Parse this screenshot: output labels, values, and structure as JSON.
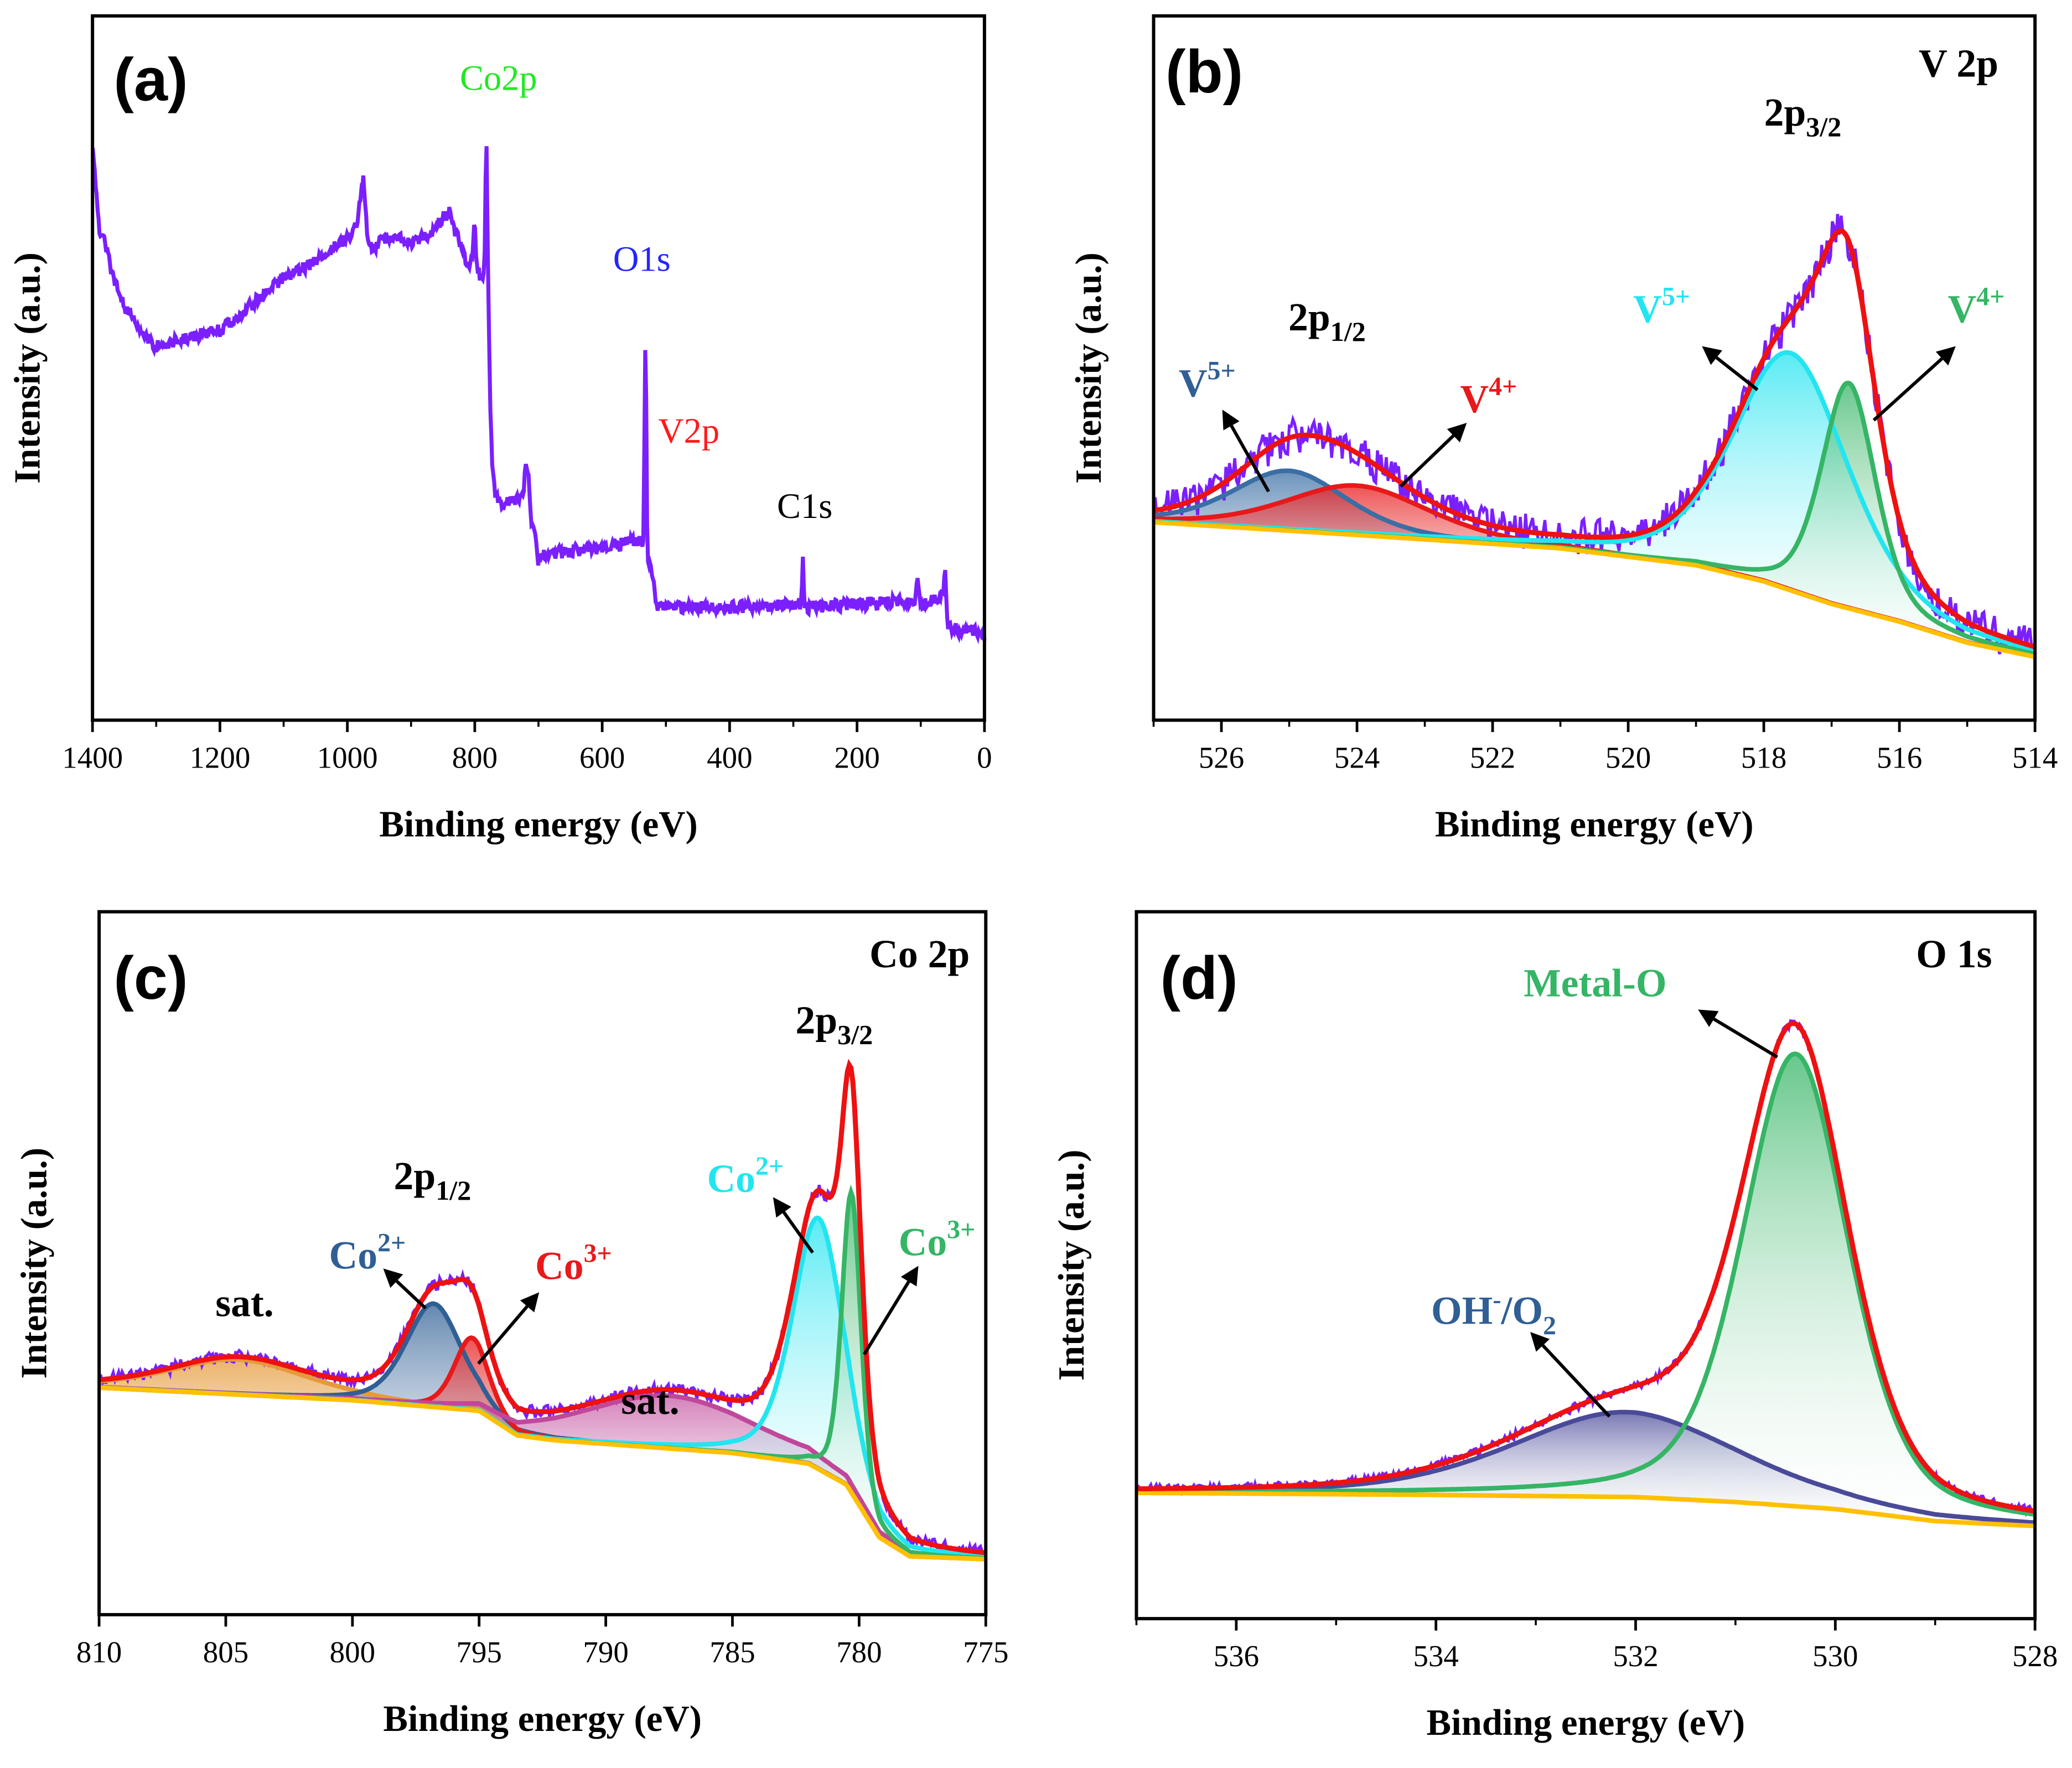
{
  "chart_data": [
    {
      "panel_label": "(a)",
      "type": "line",
      "xlabel": "Binding energy (eV)",
      "ylabel": "Intensity (a.u.)",
      "xlim": [
        1400,
        0
      ],
      "ylim": [
        0,
        100
      ],
      "xticks": [
        1400,
        1200,
        1000,
        800,
        600,
        400,
        200,
        0
      ],
      "tick_labels": [
        "1400",
        "1200",
        "1000",
        "800",
        "600",
        "400",
        "200",
        "0"
      ],
      "grid": false,
      "series_color": "#7b1fff",
      "series": [
        [
          1400,
          81.6
        ],
        [
          1390,
          70
        ],
        [
          1380,
          67.5
        ],
        [
          1365,
          62
        ],
        [
          1350,
          59
        ],
        [
          1320,
          55
        ],
        [
          1300,
          53
        ],
        [
          1280,
          53.5
        ],
        [
          1250,
          54.4
        ],
        [
          1220,
          55
        ],
        [
          1200,
          55.3
        ],
        [
          1150,
          59
        ],
        [
          1100,
          62.9
        ],
        [
          1050,
          65
        ],
        [
          1000,
          68.5
        ],
        [
          985,
          70
        ],
        [
          975,
          77
        ],
        [
          968,
          68
        ],
        [
          960,
          67
        ],
        [
          930,
          69
        ],
        [
          900,
          67.5
        ],
        [
          870,
          69
        ],
        [
          850,
          71.3
        ],
        [
          840,
          72
        ],
        [
          825,
          68
        ],
        [
          810,
          64.7
        ],
        [
          803,
          66
        ],
        [
          800,
          72
        ],
        [
          797,
          64
        ],
        [
          790,
          63
        ],
        [
          785,
          63
        ],
        [
          782,
          84.4
        ],
        [
          779,
          63
        ],
        [
          776,
          46
        ],
        [
          772,
          35
        ],
        [
          768,
          31.9
        ],
        [
          760,
          30.5
        ],
        [
          740,
          31
        ],
        [
          725,
          31.5
        ],
        [
          720,
          36
        ],
        [
          716,
          35.5
        ],
        [
          712,
          28
        ],
        [
          705,
          26
        ],
        [
          700,
          22.5
        ],
        [
          690,
          23.5
        ],
        [
          650,
          24
        ],
        [
          600,
          24.5
        ],
        [
          560,
          25.3
        ],
        [
          540,
          25.5
        ],
        [
          535,
          25
        ],
        [
          532,
          58.2
        ],
        [
          529,
          22
        ],
        [
          525,
          22
        ],
        [
          520,
          20.5
        ],
        [
          515,
          15.9
        ],
        [
          450,
          16
        ],
        [
          400,
          16
        ],
        [
          300,
          16.3
        ],
        [
          288,
          16.5
        ],
        [
          285,
          23
        ],
        [
          282,
          16
        ],
        [
          200,
          16.5
        ],
        [
          110,
          17
        ],
        [
          105,
          20.4
        ],
        [
          100,
          16.5
        ],
        [
          70,
          17.5
        ],
        [
          65,
          18
        ],
        [
          62,
          21.6
        ],
        [
          58,
          13
        ],
        [
          40,
          12.8
        ],
        [
          20,
          12.6
        ],
        [
          0,
          12.2
        ]
      ],
      "annotations": [
        {
          "text": "Co2p",
          "color": "#22e822"
        },
        {
          "text": "O1s",
          "color": "#2424ff"
        },
        {
          "text": "V2p",
          "color": "#ff1a1a"
        },
        {
          "text": "C1s",
          "color": "#000000"
        }
      ]
    },
    {
      "panel_label": "(b)",
      "title": "V 2p",
      "type": "line",
      "xlabel": "Binding energy (eV)",
      "ylabel": "Intensity (a.u.)",
      "xlim": [
        527,
        514
      ],
      "ylim": [
        0,
        100
      ],
      "xticks": [
        526,
        524,
        522,
        520,
        518,
        516,
        514
      ],
      "tick_labels": [
        "526",
        "524",
        "522",
        "520",
        "518",
        "516",
        "514"
      ],
      "grid": false,
      "raw_color": "#7b1fff",
      "envelope_color": "#ee1111",
      "baseline_color": "#ffc000",
      "baseline": [
        [
          527,
          28.1
        ],
        [
          524,
          26.3
        ],
        [
          521,
          24.4
        ],
        [
          519,
          22
        ],
        [
          518,
          19.7
        ],
        [
          517,
          16.5
        ],
        [
          516,
          14
        ],
        [
          515,
          11
        ],
        [
          514,
          9
        ]
      ],
      "components": [
        {
          "label": "V",
          "sup": "5+",
          "center": 525.0,
          "height": 8.5,
          "fwhm": 2.0,
          "color": "#3a6ea5"
        },
        {
          "label": "V",
          "sup": "4+",
          "center": 524.0,
          "height": 7.0,
          "fwhm": 2.5,
          "color": "#e8191a"
        },
        {
          "label": "V",
          "sup": "5+",
          "center": 517.6,
          "height": 33.7,
          "fwhm": 2.0,
          "color": "#22e5f0"
        },
        {
          "label": "V",
          "sup": "4+",
          "center": 516.75,
          "height": 32.0,
          "fwhm": 0.95,
          "color": "#35b565"
        }
      ],
      "peak_labels": [
        {
          "base": "2p",
          "sub": "1/2"
        },
        {
          "base": "2p",
          "sub": "3/2"
        }
      ]
    },
    {
      "panel_label": "(c)",
      "title": "Co 2p",
      "type": "line",
      "xlabel": "Binding energy (eV)",
      "ylabel": "Intensity (a.u.)",
      "xlim": [
        810,
        775
      ],
      "ylim": [
        0,
        100
      ],
      "xticks": [
        810,
        805,
        800,
        795,
        790,
        785,
        780,
        775
      ],
      "tick_labels": [
        "810",
        "805",
        "800",
        "795",
        "790",
        "785",
        "780",
        "775"
      ],
      "grid": false,
      "raw_color": "#7b1fff",
      "envelope_color": "#ee1111",
      "baseline_color": "#ffc000",
      "baseline": [
        [
          810,
          32.3
        ],
        [
          800,
          30.5
        ],
        [
          795,
          29
        ],
        [
          793.5,
          25.5
        ],
        [
          792,
          24.8
        ],
        [
          785,
          23
        ],
        [
          782,
          21.5
        ],
        [
          780.5,
          18.5
        ],
        [
          779.2,
          11
        ],
        [
          778,
          8.3
        ],
        [
          775,
          7.9
        ]
      ],
      "components": [
        {
          "label": "sat.",
          "center": 804.5,
          "height": 5.0,
          "fwhm": 6.5,
          "color": "#e59a3a"
        },
        {
          "label": "Co",
          "sup": "2+",
          "center": 796.8,
          "height": 14.7,
          "fwhm": 2.6,
          "color": "#2f5f95"
        },
        {
          "label": "Co",
          "sup": "3+",
          "center": 795.3,
          "height": 10.3,
          "fwhm": 1.6,
          "color": "#e8191a"
        },
        {
          "label": "sat.",
          "center": 787.5,
          "height": 7.5,
          "fwhm": 8.0,
          "color": "#c0479a"
        },
        {
          "label": "Co",
          "sup": "2+",
          "center": 781.6,
          "height": 35.7,
          "fwhm": 2.4,
          "color": "#22e5f0"
        },
        {
          "label": "Co",
          "sup": "3+",
          "center": 780.3,
          "height": 42.7,
          "fwhm": 0.9,
          "color": "#35b565"
        }
      ],
      "peak_labels": [
        {
          "base": "2p",
          "sub": "1/2"
        },
        {
          "base": "2p",
          "sub": "3/2"
        }
      ]
    },
    {
      "panel_label": "(d)",
      "title": "O 1s",
      "type": "line",
      "xlabel": "Binding energy (eV)",
      "ylabel": "Intensity (a.u.)",
      "xlim": [
        537,
        528
      ],
      "ylim": [
        0,
        100
      ],
      "xticks": [
        536,
        534,
        532,
        530,
        528
      ],
      "tick_labels": [
        "536",
        "534",
        "532",
        "530",
        "528"
      ],
      "grid": false,
      "raw_color": "#7b1fff",
      "envelope_color": "#ee1111",
      "baseline_color": "#ffc000",
      "baseline": [
        [
          537,
          17.8
        ],
        [
          534,
          17.5
        ],
        [
          532,
          17.2
        ],
        [
          531,
          16.5
        ],
        [
          530,
          15.5
        ],
        [
          529,
          13.8
        ],
        [
          528,
          13.1
        ]
      ],
      "components": [
        {
          "label": "OH",
          "sup": "-",
          "mid": "/O",
          "sub": "2",
          "center": 532.1,
          "height": 12.0,
          "fwhm": 2.7,
          "color": "#4a4a9a"
        },
        {
          "label": "Metal-O",
          "center": 530.4,
          "height": 64.0,
          "fwhm": 1.25,
          "color": "#35b565"
        }
      ]
    }
  ]
}
